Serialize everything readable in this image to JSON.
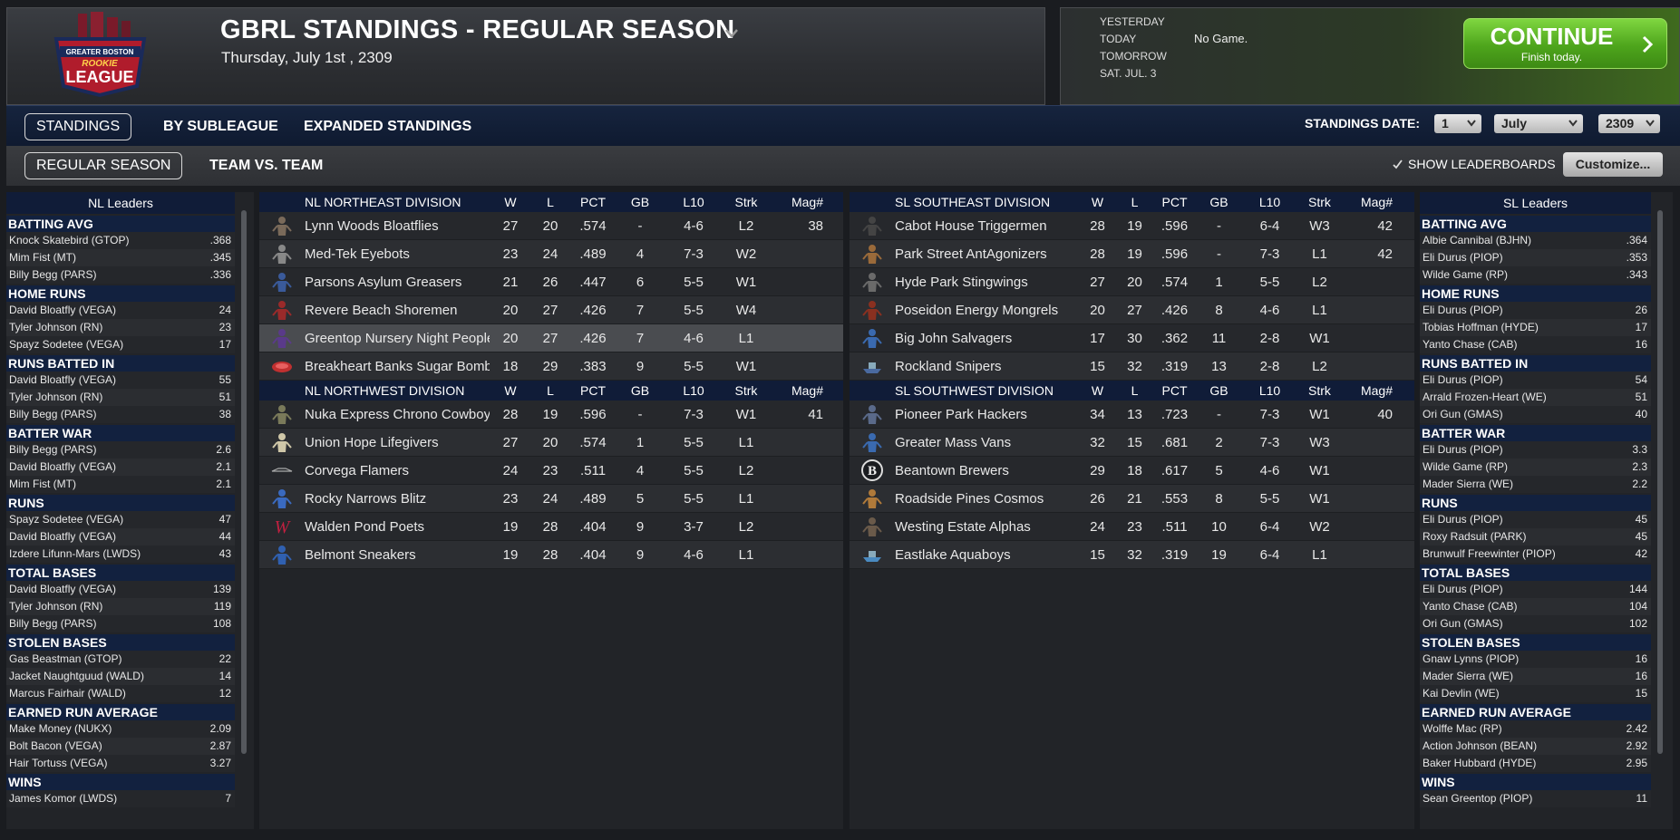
{
  "header": {
    "title": "GBRL STANDINGS - REGULAR SEASON",
    "date": "Thursday, July 1st , 2309",
    "logo_text_top": "GREATER BOSTON",
    "logo_text_mid": "ROOKIE",
    "logo_text_bot": "LEAGUE"
  },
  "schedule": {
    "yesterday": "YESTERDAY",
    "today": "TODAY",
    "tomorrow": "TOMORROW",
    "next": "SAT. JUL. 3",
    "today_result": "No Game."
  },
  "continue": {
    "label": "CONTINUE",
    "sub": "Finish today."
  },
  "tabs": {
    "standings": "STANDINGS",
    "by_subleague": "BY SUBLEAGUE",
    "expanded": "EXPANDED STANDINGS",
    "regular": "REGULAR SEASON",
    "team_vs_team": "TEAM VS. TEAM"
  },
  "standings_date": {
    "label": "STANDINGS DATE:",
    "day": "1",
    "month": "July",
    "year": "2309"
  },
  "show_leaderboards": "SHOW LEADERBOARDS",
  "customize": "Customize...",
  "nl_leaders": {
    "title": "NL Leaders",
    "cats": [
      {
        "name": "BATTING AVG",
        "rows": [
          [
            "Knock Skatebird (GTOP)",
            ".368"
          ],
          [
            "Mim Fist (MT)",
            ".345"
          ],
          [
            "Billy Begg (PARS)",
            ".336"
          ]
        ]
      },
      {
        "name": "HOME RUNS",
        "rows": [
          [
            "David Bloatfly (VEGA)",
            "24"
          ],
          [
            "Tyler Johnson (RN)",
            "23"
          ],
          [
            "Spayz Sodetee (VEGA)",
            "17"
          ]
        ]
      },
      {
        "name": "RUNS BATTED IN",
        "rows": [
          [
            "David Bloatfly (VEGA)",
            "55"
          ],
          [
            "Tyler Johnson (RN)",
            "51"
          ],
          [
            "Billy Begg (PARS)",
            "38"
          ]
        ]
      },
      {
        "name": "BATTER WAR",
        "rows": [
          [
            "Billy Begg (PARS)",
            "2.6"
          ],
          [
            "David Bloatfly (VEGA)",
            "2.1"
          ],
          [
            "Mim Fist (MT)",
            "2.1"
          ]
        ]
      },
      {
        "name": "RUNS",
        "rows": [
          [
            "Spayz Sodetee (VEGA)",
            "47"
          ],
          [
            "David Bloatfly (VEGA)",
            "44"
          ],
          [
            "Izdere Lifunn-Mars (LWDS)",
            "43"
          ]
        ]
      },
      {
        "name": "TOTAL BASES",
        "rows": [
          [
            "David Bloatfly (VEGA)",
            "139"
          ],
          [
            "Tyler Johnson (RN)",
            "119"
          ],
          [
            "Billy Begg (PARS)",
            "108"
          ]
        ]
      },
      {
        "name": "STOLEN BASES",
        "rows": [
          [
            "Gas Beastman (GTOP)",
            "22"
          ],
          [
            "Jacket Naughtguud (WALD)",
            "14"
          ],
          [
            "Marcus Fairhair (WALD)",
            "12"
          ]
        ]
      },
      {
        "name": "EARNED RUN AVERAGE",
        "rows": [
          [
            "Make Money (NUKX)",
            "2.09"
          ],
          [
            "Bolt Bacon (VEGA)",
            "2.87"
          ],
          [
            "Hair Tortuss (VEGA)",
            "3.27"
          ]
        ]
      },
      {
        "name": "WINS",
        "rows": [
          [
            "James Komor (LWDS)",
            "7"
          ]
        ]
      }
    ]
  },
  "sl_leaders": {
    "title": "SL Leaders",
    "cats": [
      {
        "name": "BATTING AVG",
        "rows": [
          [
            "Albie Cannibal (BJHN)",
            ".364"
          ],
          [
            "Eli Durus (PIOP)",
            ".353"
          ],
          [
            "Wilde Game (RP)",
            ".343"
          ]
        ]
      },
      {
        "name": "HOME RUNS",
        "rows": [
          [
            "Eli Durus (PIOP)",
            "26"
          ],
          [
            "Tobias Hoffman (HYDE)",
            "17"
          ],
          [
            "Yanto Chase (CAB)",
            "16"
          ]
        ]
      },
      {
        "name": "RUNS BATTED IN",
        "rows": [
          [
            "Eli Durus (PIOP)",
            "54"
          ],
          [
            "Arrald Frozen-Heart (WE)",
            "51"
          ],
          [
            "Ori Gun (GMAS)",
            "40"
          ]
        ]
      },
      {
        "name": "BATTER WAR",
        "rows": [
          [
            "Eli Durus (PIOP)",
            "3.3"
          ],
          [
            "Wilde Game (RP)",
            "2.3"
          ],
          [
            "Mader Sierra (WE)",
            "2.2"
          ]
        ]
      },
      {
        "name": "RUNS",
        "rows": [
          [
            "Eli Durus (PIOP)",
            "45"
          ],
          [
            "Roxy Radsuit (PARK)",
            "45"
          ],
          [
            "Brunwulf Freewinter (PIOP)",
            "42"
          ]
        ]
      },
      {
        "name": "TOTAL BASES",
        "rows": [
          [
            "Eli Durus (PIOP)",
            "144"
          ],
          [
            "Yanto Chase (CAB)",
            "104"
          ],
          [
            "Ori Gun (GMAS)",
            "102"
          ]
        ]
      },
      {
        "name": "STOLEN BASES",
        "rows": [
          [
            "Gnaw Lynns (PIOP)",
            "16"
          ],
          [
            "Mader Sierra (WE)",
            "16"
          ],
          [
            "Kai Devlin (WE)",
            "15"
          ]
        ]
      },
      {
        "name": "EARNED RUN AVERAGE",
        "rows": [
          [
            "Wolffe Mac (RP)",
            "2.42"
          ],
          [
            "Action Johnson (BEAN)",
            "2.92"
          ],
          [
            "Baker Hubbard (HYDE)",
            "2.95"
          ]
        ]
      },
      {
        "name": "WINS",
        "rows": [
          [
            "Sean Greentop (PIOP)",
            "11"
          ]
        ]
      }
    ]
  },
  "cols": {
    "w": "W",
    "l": "L",
    "pct": "PCT",
    "gb": "GB",
    "l10": "L10",
    "strk": "Strk",
    "mag": "Mag#"
  },
  "divisions": [
    {
      "name": "NL NORTHEAST DIVISION",
      "teams": [
        {
          "name": "Lynn Woods Bloatflies",
          "w": "27",
          "l": "20",
          "pct": ".574",
          "gb": "-",
          "l10": "4-6",
          "strk": "L2",
          "mag": "38",
          "icon": "bug-icon",
          "color": "#7a6a5a"
        },
        {
          "name": "Med-Tek Eyebots",
          "w": "23",
          "l": "24",
          "pct": ".489",
          "gb": "4",
          "l10": "7-3",
          "strk": "W2",
          "mag": "",
          "icon": "robot-icon",
          "color": "#888"
        },
        {
          "name": "Parsons Asylum Greasers",
          "w": "21",
          "l": "26",
          "pct": ".447",
          "gb": "6",
          "l10": "5-5",
          "strk": "W1",
          "mag": "",
          "icon": "person-icon",
          "color": "#3a5a9a"
        },
        {
          "name": "Revere Beach Shoremen",
          "w": "20",
          "l": "27",
          "pct": ".426",
          "gb": "7",
          "l10": "5-5",
          "strk": "W4",
          "mag": "",
          "icon": "anchor-icon",
          "color": "#9a2a2a"
        },
        {
          "name": "Greentop Nursery Night People",
          "w": "20",
          "l": "27",
          "pct": ".426",
          "gb": "7",
          "l10": "4-6",
          "strk": "L1",
          "mag": "",
          "icon": "ghost-icon",
          "color": "#5a3a8a"
        },
        {
          "name": "Breakheart Banks Sugar Bombers",
          "w": "18",
          "l": "29",
          "pct": ".383",
          "gb": "9",
          "l10": "5-5",
          "strk": "W1",
          "mag": "",
          "icon": "bomb-icon",
          "color": "#c03030"
        }
      ]
    },
    {
      "name": "NL NORTHWEST DIVISION",
      "teams": [
        {
          "name": "Nuka Express Chrono Cowboys",
          "w": "28",
          "l": "19",
          "pct": ".596",
          "gb": "-",
          "l10": "7-3",
          "strk": "W1",
          "mag": "41",
          "icon": "lizard-icon",
          "color": "#7a7a5a"
        },
        {
          "name": "Union Hope Lifegivers",
          "w": "27",
          "l": "20",
          "pct": ".574",
          "gb": "1",
          "l10": "5-5",
          "strk": "L1",
          "mag": "",
          "icon": "statue-icon",
          "color": "#cfc7a8"
        },
        {
          "name": "Corvega Flamers",
          "w": "24",
          "l": "23",
          "pct": ".511",
          "gb": "4",
          "l10": "5-5",
          "strk": "L2",
          "mag": "",
          "icon": "car-logo-icon",
          "color": "#aaaaaa"
        },
        {
          "name": "Rocky Narrows Blitz",
          "w": "23",
          "l": "24",
          "pct": ".489",
          "gb": "5",
          "l10": "5-5",
          "strk": "L1",
          "mag": "",
          "icon": "runner-icon",
          "color": "#3a6ac0"
        },
        {
          "name": "Walden Pond Poets",
          "w": "19",
          "l": "28",
          "pct": ".404",
          "gb": "9",
          "l10": "3-7",
          "strk": "L2",
          "mag": "",
          "icon": "w-logo-icon",
          "color": "#c02040"
        },
        {
          "name": "Belmont Sneakers",
          "w": "19",
          "l": "28",
          "pct": ".404",
          "gb": "9",
          "l10": "4-6",
          "strk": "L1",
          "mag": "",
          "icon": "sneaker-icon",
          "color": "#3060b0"
        }
      ]
    },
    {
      "name": "SL SOUTHEAST DIVISION",
      "teams": [
        {
          "name": "Cabot House Triggermen",
          "w": "28",
          "l": "19",
          "pct": ".596",
          "gb": "-",
          "l10": "6-4",
          "strk": "W3",
          "mag": "42",
          "icon": "gunman-icon",
          "color": "#444"
        },
        {
          "name": "Park Street AntAgonizers",
          "w": "28",
          "l": "19",
          "pct": ".596",
          "gb": "-",
          "l10": "7-3",
          "strk": "L1",
          "mag": "42",
          "icon": "ant-icon",
          "color": "#9a6a3a"
        },
        {
          "name": "Hyde Park Stingwings",
          "w": "27",
          "l": "20",
          "pct": ".574",
          "gb": "1",
          "l10": "5-5",
          "strk": "L2",
          "mag": "",
          "icon": "wasp-icon",
          "color": "#6a6a6a"
        },
        {
          "name": "Poseidon Energy Mongrels",
          "w": "20",
          "l": "27",
          "pct": ".426",
          "gb": "8",
          "l10": "4-6",
          "strk": "L1",
          "mag": "",
          "icon": "dog-icon",
          "color": "#8a3020"
        },
        {
          "name": "Big John Salvagers",
          "w": "17",
          "l": "30",
          "pct": ".362",
          "gb": "11",
          "l10": "2-8",
          "strk": "W1",
          "mag": "",
          "icon": "worker-icon",
          "color": "#3a6ab0"
        },
        {
          "name": "Rockland Snipers",
          "w": "15",
          "l": "32",
          "pct": ".319",
          "gb": "13",
          "l10": "2-8",
          "strk": "L2",
          "mag": "",
          "icon": "sniper-icon",
          "color": "#4a6aa0"
        }
      ]
    },
    {
      "name": "SL SOUTHWEST DIVISION",
      "teams": [
        {
          "name": "Pioneer Park Hackers",
          "w": "34",
          "l": "13",
          "pct": ".723",
          "gb": "-",
          "l10": "7-3",
          "strk": "W1",
          "mag": "40",
          "icon": "hacker-icon",
          "color": "#5a6a8a"
        },
        {
          "name": "Greater Mass Vans",
          "w": "32",
          "l": "15",
          "pct": ".681",
          "gb": "2",
          "l10": "7-3",
          "strk": "W3",
          "mag": "",
          "icon": "driver-icon",
          "color": "#3a6ab0"
        },
        {
          "name": "Beantown Brewers",
          "w": "29",
          "l": "18",
          "pct": ".617",
          "gb": "5",
          "l10": "4-6",
          "strk": "W1",
          "mag": "",
          "icon": "b-logo-icon",
          "color": "#ffffff"
        },
        {
          "name": "Roadside Pines Cosmos",
          "w": "26",
          "l": "21",
          "pct": ".553",
          "gb": "8",
          "l10": "5-5",
          "strk": "W1",
          "mag": "",
          "icon": "astronaut-icon",
          "color": "#b07a3a"
        },
        {
          "name": "Westing Estate Alphas",
          "w": "24",
          "l": "23",
          "pct": ".511",
          "gb": "10",
          "l10": "6-4",
          "strk": "W2",
          "mag": "",
          "icon": "wolf-icon",
          "color": "#6a5a4a"
        },
        {
          "name": "Eastlake Aquaboys",
          "w": "15",
          "l": "32",
          "pct": ".319",
          "gb": "19",
          "l10": "6-4",
          "strk": "L1",
          "mag": "",
          "icon": "boat-icon",
          "color": "#4a8ac0"
        }
      ]
    }
  ]
}
